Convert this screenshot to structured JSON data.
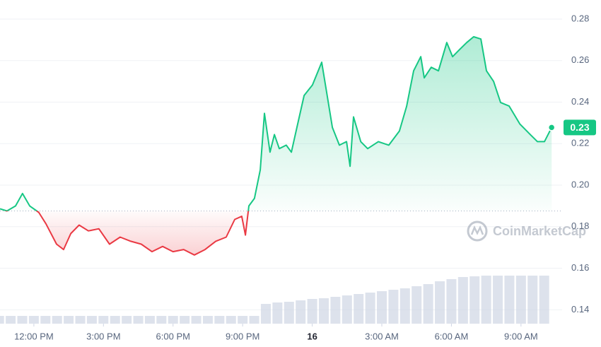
{
  "chart_data": {
    "type": "line",
    "watermark": "CoinMarketCap",
    "price_label": "0.23",
    "reference_value": 0.1876,
    "up_color": "#16c784",
    "down_color": "#ea3943",
    "xlim": [
      -1.46,
      22.62
    ],
    "xticks": [
      {
        "value": 0,
        "label": "12:00 PM"
      },
      {
        "value": 3,
        "label": "3:00 PM"
      },
      {
        "value": 6,
        "label": "6:00 PM"
      },
      {
        "value": 9,
        "label": "9:00 PM"
      },
      {
        "value": 12,
        "label": "16",
        "bold": true
      },
      {
        "value": 15,
        "label": "3:00 AM"
      },
      {
        "value": 18,
        "label": "6:00 AM"
      },
      {
        "value": 21,
        "label": "9:00 AM"
      }
    ],
    "ylim": [
      0.1333,
      0.2892
    ],
    "yticks": [
      0.14,
      0.16,
      0.18,
      {
        "value": 0.2,
        "label": "0.20"
      },
      0.22,
      0.24,
      0.26,
      0.28
    ],
    "grid": true,
    "x": [
      -1.46,
      -1.16,
      -0.79,
      -0.49,
      -0.18,
      0.21,
      0.52,
      0.98,
      1.28,
      1.59,
      1.95,
      2.35,
      2.8,
      3.26,
      3.72,
      4.18,
      4.63,
      5.09,
      5.55,
      6.0,
      6.46,
      6.92,
      7.38,
      7.84,
      8.29,
      8.66,
      8.96,
      9.12,
      9.27,
      9.51,
      9.76,
      9.94,
      10.18,
      10.37,
      10.58,
      10.88,
      11.1,
      11.34,
      11.65,
      12.01,
      12.41,
      12.62,
      12.87,
      13.17,
      13.48,
      13.63,
      13.78,
      14.09,
      14.39,
      14.85,
      15.3,
      15.76,
      16.07,
      16.37,
      16.68,
      16.83,
      17.13,
      17.44,
      17.8,
      18.05,
      18.35,
      18.66,
      18.96,
      19.27,
      19.51,
      19.82,
      20.12,
      20.49,
      20.95,
      21.4,
      21.71,
      22.01,
      22.32
    ],
    "series": [
      {
        "name": "Price",
        "values": [
          0.1886,
          0.1876,
          0.19,
          0.196,
          0.19,
          0.1869,
          0.1814,
          0.1716,
          0.169,
          0.1767,
          0.1808,
          0.178,
          0.179,
          0.1716,
          0.175,
          0.173,
          0.1716,
          0.168,
          0.1705,
          0.168,
          0.169,
          0.1664,
          0.169,
          0.173,
          0.175,
          0.1835,
          0.185,
          0.176,
          0.19,
          0.1937,
          0.2074,
          0.2346,
          0.2159,
          0.2244,
          0.2176,
          0.2193,
          0.2159,
          0.2278,
          0.2432,
          0.2483,
          0.2592,
          0.2449,
          0.2278,
          0.2193,
          0.221,
          0.2091,
          0.2329,
          0.221,
          0.2176,
          0.221,
          0.2193,
          0.2261,
          0.238,
          0.2551,
          0.2619,
          0.2517,
          0.2568,
          0.2551,
          0.2687,
          0.2619,
          0.2653,
          0.2687,
          0.2715,
          0.2704,
          0.2551,
          0.25,
          0.2398,
          0.2381,
          0.2295,
          0.2244,
          0.221,
          0.221,
          0.2278
        ]
      }
    ],
    "volume": {
      "color": "#cfd6e4",
      "y2lim": [
        0,
        100
      ],
      "x": [
        -1.5,
        -1,
        -0.5,
        0,
        0.5,
        1,
        1.5,
        2,
        2.5,
        3,
        3.5,
        4,
        4.5,
        5,
        5.5,
        6,
        6.5,
        7,
        7.5,
        8,
        8.5,
        9,
        9.5,
        10,
        10.5,
        11,
        11.5,
        12,
        12.5,
        13,
        13.5,
        14,
        14.5,
        15,
        15.5,
        16,
        16.5,
        17,
        17.5,
        18,
        18.5,
        19,
        19.5,
        20,
        20.5,
        21,
        21.5,
        22
      ],
      "values": [
        11,
        11,
        11,
        11,
        11,
        11,
        11,
        11,
        11,
        11,
        11,
        11,
        11,
        11,
        11,
        11,
        11,
        11,
        11,
        11,
        11,
        11,
        11,
        28,
        30,
        31,
        33,
        35,
        36,
        38,
        40,
        42,
        44,
        46,
        48,
        50,
        53,
        56,
        60,
        63,
        66,
        67,
        68,
        68,
        68,
        68,
        68,
        68
      ]
    }
  }
}
